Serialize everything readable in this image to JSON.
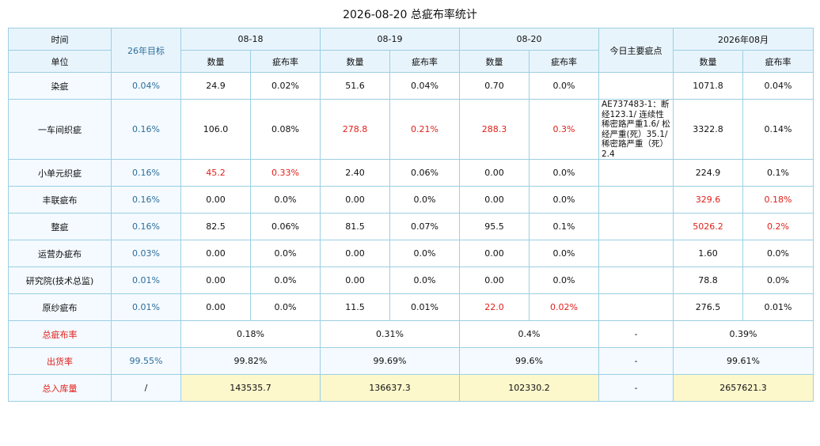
{
  "title": "2026-08-20 总疵布率统计",
  "header": {
    "time_label": "时间",
    "unit_label": "单位",
    "target_label": "26年目标",
    "dates": [
      "08-18",
      "08-19",
      "08-20"
    ],
    "notes_label": "今日主要疵点",
    "month_label": "2026年08月",
    "qty_label": "数量",
    "rate_label": "疵布率"
  },
  "rows": [
    {
      "name": "染疵",
      "target": "0.04%",
      "cells": [
        "24.9",
        "0.02%",
        "51.6",
        "0.04%",
        "0.70",
        "0.0%"
      ],
      "note": "",
      "month": [
        "1071.8",
        "0.04%"
      ]
    },
    {
      "name": "一车间织疵",
      "target": "0.16%",
      "cells": [
        "106.0",
        "0.08%",
        "278.8",
        "0.21%",
        "288.3",
        "0.3%"
      ],
      "note": "AE737483-1：断经123.1/ 连续性稀密路严重1.6/ 松经严重(死）35.1/ 稀密路严重（死）2.4",
      "month": [
        "3322.8",
        "0.14%"
      ]
    },
    {
      "name": "小单元织疵",
      "target": "0.16%",
      "cells": [
        "45.2",
        "0.33%",
        "2.40",
        "0.06%",
        "0.00",
        "0.0%"
      ],
      "note": "",
      "month": [
        "224.9",
        "0.1%"
      ]
    },
    {
      "name": "丰联疵布",
      "target": "0.16%",
      "cells": [
        "0.00",
        "0.0%",
        "0.00",
        "0.0%",
        "0.00",
        "0.0%"
      ],
      "note": "",
      "month": [
        "329.6",
        "0.18%"
      ]
    },
    {
      "name": "整疵",
      "target": "0.16%",
      "cells": [
        "82.5",
        "0.06%",
        "81.5",
        "0.07%",
        "95.5",
        "0.1%"
      ],
      "note": "",
      "month": [
        "5026.2",
        "0.2%"
      ]
    },
    {
      "name": "运营办疵布",
      "target": "0.03%",
      "cells": [
        "0.00",
        "0.0%",
        "0.00",
        "0.0%",
        "0.00",
        "0.0%"
      ],
      "note": "",
      "month": [
        "1.60",
        "0.0%"
      ]
    },
    {
      "name": "研究院(技术总监)",
      "target": "0.01%",
      "cells": [
        "0.00",
        "0.0%",
        "0.00",
        "0.0%",
        "0.00",
        "0.0%"
      ],
      "note": "",
      "month": [
        "78.8",
        "0.0%"
      ]
    },
    {
      "name": "原纱疵布",
      "target": "0.01%",
      "cells": [
        "0.00",
        "0.0%",
        "11.5",
        "0.01%",
        "22.0",
        "0.02%"
      ],
      "note": "",
      "month": [
        "276.5",
        "0.01%"
      ]
    }
  ],
  "summary": [
    {
      "name": "总疵布率",
      "target": "",
      "values": [
        "0.18%",
        "0.31%",
        "0.4%"
      ],
      "note": "-",
      "month": "0.39%"
    },
    {
      "name": "出货率",
      "target": "99.55%",
      "values": [
        "99.82%",
        "99.69%",
        "99.6%"
      ],
      "note": "-",
      "month": "99.61%"
    },
    {
      "name": "总入库量",
      "target": "/",
      "values": [
        "143535.7",
        "136637.3",
        "102330.2"
      ],
      "note": "-",
      "month": "2657621.3"
    }
  ],
  "colors": {
    "border": "#9ccfe3",
    "header_bg": "#e8f4fc",
    "highlight_red": "#e0201a",
    "target_blue": "#2c6e9a",
    "yellow_bg": "#fdf7cc"
  }
}
